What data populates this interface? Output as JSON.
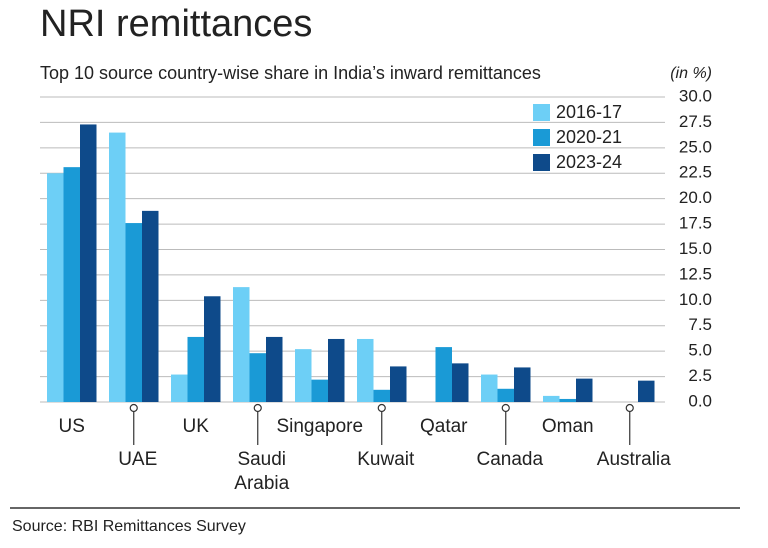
{
  "chart_data": {
    "type": "bar",
    "title": "NRI remittances",
    "subtitle": "Top 10 source country-wise share in India’s inward remittances",
    "unit_note": "(in %)",
    "source": "Source: RBI Remittances Survey",
    "categories": [
      "US",
      "UAE",
      "UK",
      "Saudi Arabia",
      "Singapore",
      "Kuwait",
      "Qatar",
      "Canada",
      "Oman",
      "Australia"
    ],
    "series": [
      {
        "name": "2016-17",
        "color": "#6dcff6",
        "values": [
          22.5,
          26.5,
          2.7,
          11.3,
          5.2,
          6.2,
          null,
          2.7,
          0.6,
          null
        ]
      },
      {
        "name": "2020-21",
        "color": "#1a9ad6",
        "values": [
          23.1,
          17.6,
          6.4,
          4.8,
          2.2,
          1.2,
          5.4,
          1.3,
          0.3,
          null
        ]
      },
      {
        "name": "2023-24",
        "color": "#0e4a8a",
        "values": [
          27.3,
          18.8,
          10.4,
          6.4,
          6.2,
          3.5,
          3.8,
          3.4,
          2.3,
          2.1
        ]
      }
    ],
    "ylim": [
      0,
      30
    ],
    "yticks": [
      {
        "value": 0,
        "label": "0.0"
      },
      {
        "value": 2.5,
        "label": "2.5"
      },
      {
        "value": 5,
        "label": "5.0"
      },
      {
        "value": 7.5,
        "label": "7.5"
      },
      {
        "value": 10,
        "label": "10.0"
      },
      {
        "value": 12.5,
        "label": "12.5"
      },
      {
        "value": 15,
        "label": "15.0"
      },
      {
        "value": 17.5,
        "label": "17.5"
      },
      {
        "value": 20,
        "label": "20.0"
      },
      {
        "value": 22.5,
        "label": "22.5"
      },
      {
        "value": 25,
        "label": "25.0"
      },
      {
        "value": 27.5,
        "label": "27.5"
      },
      {
        "value": 30,
        "label": "30.0"
      }
    ],
    "grid": true
  }
}
